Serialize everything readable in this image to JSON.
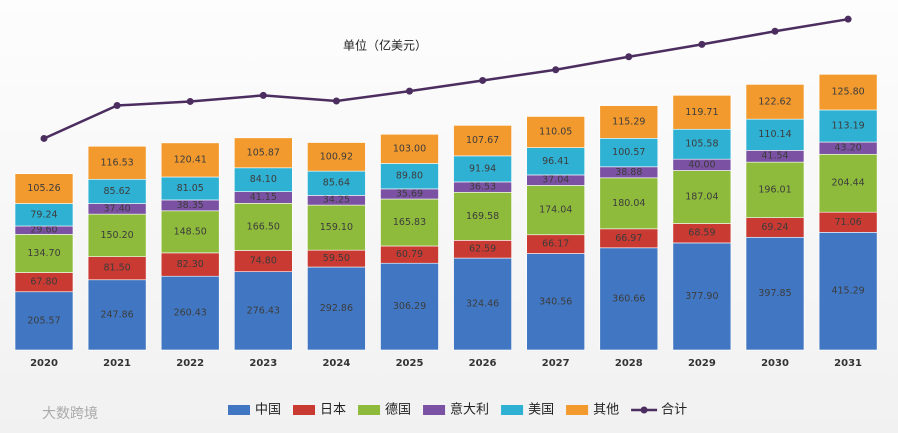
{
  "chart_data": {
    "type": "bar_line",
    "subtitle": "单位（亿美元）",
    "watermark": "大数跨境",
    "categories": [
      "2020",
      "2021",
      "2022",
      "2023",
      "2024",
      "2025",
      "2026",
      "2027",
      "2028",
      "2029",
      "2030",
      "2031"
    ],
    "ylim": [
      0,
      1200
    ],
    "y2lim": [
      0,
      1000
    ],
    "series": [
      {
        "name": "中国",
        "color": "#4177c2",
        "values": [
          205.57,
          247.86,
          260.43,
          276.43,
          292.86,
          306.29,
          324.46,
          340.56,
          360.66,
          377.9,
          397.85,
          415.29
        ],
        "value_labels": [
          "205.57",
          "247.86",
          "260.43",
          "276.43",
          "292.86",
          "306.29",
          "324.46",
          "340.56",
          "360.66",
          "377.90",
          "397.85",
          "415.29"
        ]
      },
      {
        "name": "日本",
        "color": "#c93a32",
        "values": [
          67.8,
          81.5,
          82.3,
          74.8,
          59.5,
          60.79,
          62.59,
          66.17,
          66.97,
          68.59,
          69.24,
          71.06
        ],
        "value_labels": [
          "67.80",
          "81.50",
          "82.30",
          "74.80",
          "59.50",
          "60.79",
          "62.59",
          "66.17",
          "66.97",
          "68.59",
          "69.24",
          "71.06"
        ]
      },
      {
        "name": "德国",
        "color": "#8fbb3c",
        "values": [
          134.7,
          150.2,
          148.5,
          166.5,
          159.1,
          165.83,
          169.58,
          174.04,
          180.04,
          187.04,
          196.01,
          204.44
        ],
        "value_labels": [
          "134.70",
          "150.20",
          "148.50",
          "166.50",
          "159.10",
          "165.83",
          "169.58",
          "174.04",
          "180.04",
          "187.04",
          "196.01",
          "204.44"
        ]
      },
      {
        "name": "意大利",
        "color": "#7b52a3",
        "values": [
          29.6,
          37.4,
          38.35,
          41.15,
          34.25,
          35.69,
          36.53,
          37.04,
          38.88,
          40,
          41.54,
          43.2
        ],
        "value_labels": [
          "29.60",
          "37.40",
          "38.35",
          "41.15",
          "34.25",
          "35.69",
          "36.53",
          "37.04",
          "38.88",
          "40.00",
          "41.54",
          "43.20"
        ]
      },
      {
        "name": "美国",
        "color": "#2fb1d3",
        "values": [
          79.24,
          85.62,
          81.05,
          84.1,
          85.64,
          89.8,
          91.94,
          96.41,
          100.57,
          105.58,
          110.14,
          113.19
        ],
        "value_labels": [
          "79.24",
          "85.62",
          "81.05",
          "84.10",
          "85.64",
          "89.80",
          "91.94",
          "96.41",
          "100.57",
          "105.58",
          "110.14",
          "113.19"
        ]
      },
      {
        "name": "其他",
        "color": "#f39a2e",
        "values": [
          105.26,
          116.53,
          120.41,
          105.87,
          100.92,
          103,
          107.67,
          110.05,
          115.29,
          119.71,
          122.62,
          125.8
        ],
        "value_labels": [
          "105.26",
          "116.53",
          "120.41",
          "105.87",
          "100.92",
          "103.00",
          "107.67",
          "110.05",
          "115.29",
          "119.71",
          "122.62",
          "125.80"
        ]
      },
      {
        "name": "合计",
        "type": "line",
        "axis": "y2",
        "color": "#4b2d5f",
        "values": [
          622.17,
          719.11,
          731.04,
          748.85,
          732.27,
          761.4,
          792.77,
          824.27,
          862.41,
          898.82,
          937.4,
          972.98
        ]
      }
    ]
  }
}
